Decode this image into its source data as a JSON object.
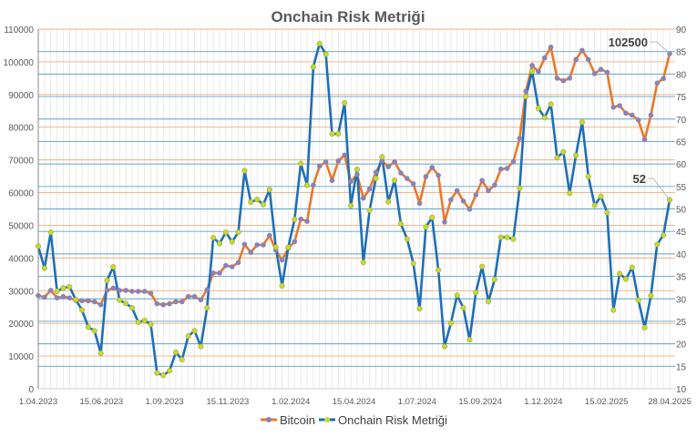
{
  "chart_data": {
    "type": "line",
    "title": "Onchain Risk Metriği",
    "xlabel": "",
    "ylabel_left": "",
    "ylabel_right": "",
    "ylim_left": [
      0,
      110000
    ],
    "ylim_right": [
      10,
      90
    ],
    "yticks_left": [
      "0",
      "10000",
      "20000",
      "30000",
      "40000",
      "50000",
      "60000",
      "70000",
      "80000",
      "90000",
      "100000",
      "110000"
    ],
    "yticks_right": [
      "10",
      "15",
      "20",
      "25",
      "30",
      "35",
      "40",
      "45",
      "50",
      "55",
      "60",
      "65",
      "70",
      "75",
      "80",
      "85",
      "90"
    ],
    "xtick_labels": [
      "1.04.2023",
      "15.06.2023",
      "1.09.2023",
      "15.11.2023",
      "1.02.2024",
      "15.04.2024",
      "1.07.2024",
      "15.09.2024",
      "1.12.2024",
      "15.02.2025",
      "28.04.2025"
    ],
    "grid": true,
    "legend_position": "bottom",
    "series": [
      {
        "name": "Bitcoin",
        "axis": "left",
        "color": "#e8792a",
        "marker_color": "#8a82b8",
        "values": [
          28500,
          28000,
          30100,
          27800,
          28200,
          27800,
          27000,
          26900,
          26900,
          26600,
          25700,
          30100,
          30800,
          30100,
          30100,
          29800,
          29800,
          29800,
          29200,
          26000,
          25700,
          26000,
          26600,
          26600,
          28200,
          28200,
          27200,
          30300,
          35400,
          35400,
          37700,
          37300,
          38600,
          44200,
          41700,
          44000,
          44000,
          46900,
          42400,
          39400,
          43000,
          45000,
          51900,
          51200,
          62300,
          68100,
          69400,
          63700,
          69700,
          71500,
          63400,
          65500,
          58300,
          61100,
          66200,
          69700,
          67900,
          69400,
          66000,
          64300,
          62700,
          56700,
          64900,
          67700,
          65300,
          51000,
          57800,
          60600,
          57400,
          54900,
          59300,
          63700,
          60600,
          62300,
          67200,
          67400,
          69500,
          76600,
          91000,
          98900,
          97000,
          101200,
          104500,
          95000,
          94200,
          95000,
          100700,
          103500,
          100700,
          96400,
          97700,
          96800,
          86100,
          86600,
          84300,
          83700,
          82200,
          76200,
          83700,
          93500,
          94900,
          102500
        ]
      },
      {
        "name": "Onchain Risk Metriği",
        "axis": "right",
        "color": "#1f6fb5",
        "marker_color": "#c9d82c",
        "values": [
          41.7,
          36.8,
          44.8,
          31.7,
          32.4,
          32.7,
          29.8,
          27.5,
          23.7,
          22.9,
          17.9,
          34.1,
          37.1,
          29.7,
          29.0,
          28.0,
          24.8,
          25.2,
          24.3,
          13.5,
          13.0,
          14.0,
          18.1,
          16.5,
          21.7,
          22.9,
          19.4,
          28.0,
          43.6,
          42.3,
          44.8,
          42.7,
          44.8,
          58.5,
          51.5,
          52.1,
          51.0,
          54.3,
          41.5,
          32.9,
          41.5,
          47.7,
          60.1,
          55.3,
          81.6,
          86.8,
          84.4,
          66.7,
          66.7,
          73.6,
          50.7,
          58.8,
          38.1,
          49.7,
          56.8,
          61.6,
          51.6,
          56.4,
          46.7,
          43.3,
          37.9,
          27.8,
          46.0,
          48.1,
          36.4,
          19.4,
          24.6,
          30.8,
          28.0,
          20.9,
          31.4,
          37.2,
          29.4,
          34.3,
          43.7,
          43.7,
          43.3,
          54.6,
          75.0,
          80.6,
          72.4,
          70.3,
          73.3,
          61.4,
          62.7,
          53.5,
          61.9,
          69.3,
          57.2,
          50.8,
          52.8,
          49.2,
          27.5,
          35.6,
          34.4,
          37.0,
          29.7,
          23.6,
          30.7,
          42.1,
          44.2,
          52
        ]
      }
    ],
    "annotations": [
      {
        "text": "102500",
        "series": "Bitcoin",
        "point": "last"
      },
      {
        "text": "52",
        "series": "Onchain Risk Metriği",
        "point": "last"
      }
    ]
  }
}
